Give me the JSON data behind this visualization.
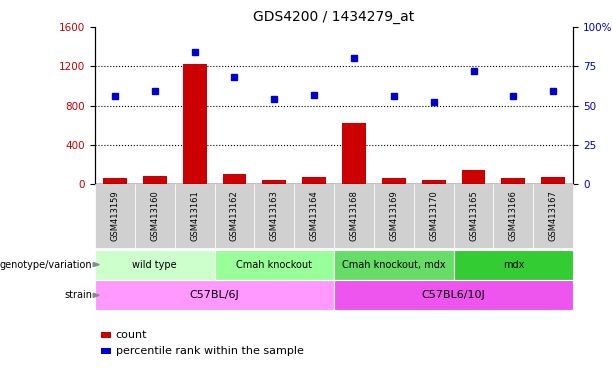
{
  "title": "GDS4200 / 1434279_at",
  "samples": [
    "GSM413159",
    "GSM413160",
    "GSM413161",
    "GSM413162",
    "GSM413163",
    "GSM413164",
    "GSM413168",
    "GSM413169",
    "GSM413170",
    "GSM413165",
    "GSM413166",
    "GSM413167"
  ],
  "counts": [
    60,
    80,
    1220,
    100,
    45,
    70,
    620,
    65,
    40,
    145,
    65,
    75
  ],
  "percentiles": [
    56,
    59,
    84,
    68,
    54,
    57,
    80,
    56,
    52,
    72,
    56,
    59
  ],
  "left_ylim": [
    0,
    1600
  ],
  "left_yticks": [
    0,
    400,
    800,
    1200,
    1600
  ],
  "right_ylim": [
    0,
    100
  ],
  "right_yticks": [
    0,
    25,
    50,
    75,
    100
  ],
  "bar_color": "#cc0000",
  "dot_color": "#0000cc",
  "groups": [
    {
      "label": "wild type",
      "start": 0,
      "end": 3,
      "color": "#ccffcc"
    },
    {
      "label": "Cmah knockout",
      "start": 3,
      "end": 6,
      "color": "#99ff99"
    },
    {
      "label": "Cmah knockout, mdx",
      "start": 6,
      "end": 9,
      "color": "#66dd66"
    },
    {
      "label": "mdx",
      "start": 9,
      "end": 12,
      "color": "#33cc33"
    }
  ],
  "strains": [
    {
      "label": "C57BL/6J",
      "start": 0,
      "end": 6,
      "color": "#ff99ff"
    },
    {
      "label": "C57BL6/10J",
      "start": 6,
      "end": 12,
      "color": "#ee55ee"
    }
  ],
  "genotype_label": "genotype/variation",
  "strain_label": "strain",
  "legend_count": "count",
  "legend_percentile": "percentile rank within the sample",
  "bg_color": "#ffffff",
  "grid_color": "#000000",
  "xtick_bg": "#d0d0d0"
}
